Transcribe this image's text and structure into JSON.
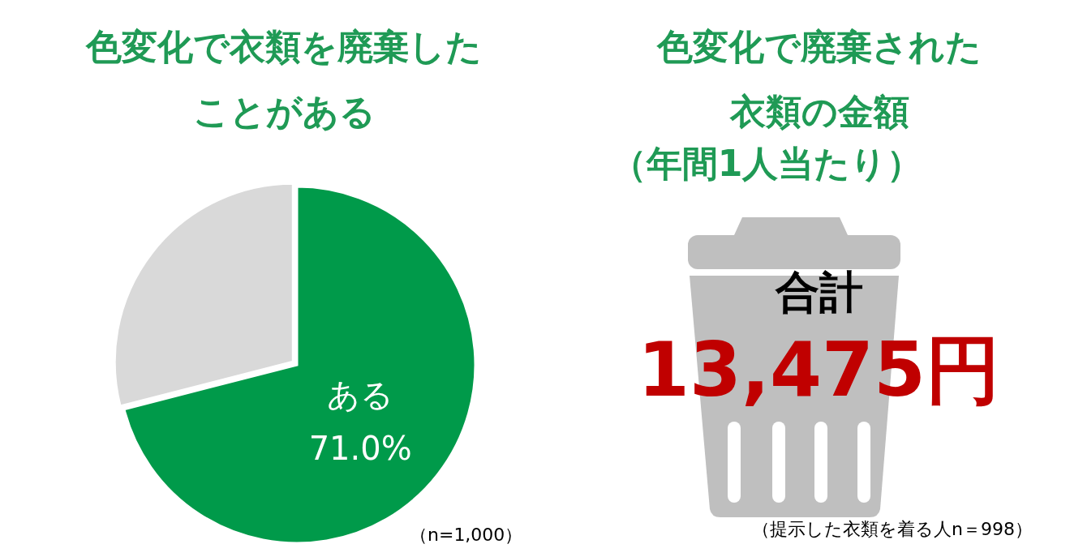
{
  "chart_data": [
    {
      "type": "pie",
      "title": "色変化で衣類を廃棄したことがある",
      "categories": [
        "ある",
        null
      ],
      "values": [
        71.0,
        29.0
      ],
      "colors": [
        "#009a4a",
        "#d9d9d9"
      ],
      "value_labels": [
        "71.0%",
        null
      ],
      "annotations": [
        "（n=1,000）"
      ]
    },
    {
      "type": "other",
      "title": "色変化で廃棄された衣類の金額",
      "subtitle": "（年間1人当たり）",
      "annotations": [
        "合計",
        "13,475円",
        "（提示した衣類を着る人n＝998）"
      ]
    }
  ]
}
